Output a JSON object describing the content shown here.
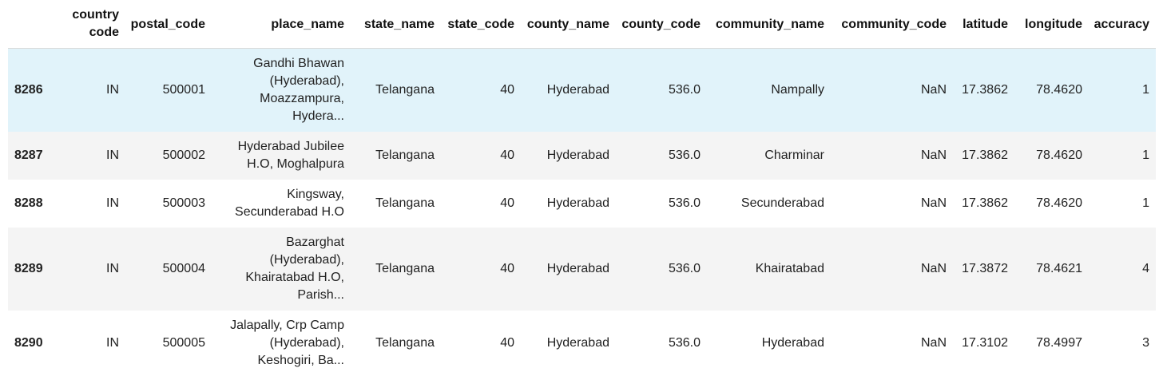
{
  "table": {
    "headers": {
      "index": "",
      "country_code": "country code",
      "postal_code": "postal_code",
      "place_name": "place_name",
      "state_name": "state_name",
      "state_code": "state_code",
      "county_name": "county_name",
      "county_code": "county_code",
      "community_name": "community_name",
      "community_code": "community_code",
      "latitude": "latitude",
      "longitude": "longitude",
      "accuracy": "accuracy"
    },
    "rows": [
      {
        "index": "8286",
        "country_code": "IN",
        "postal_code": "500001",
        "place_name": "Gandhi Bhawan (Hyderabad), Moazzampura, Hydera...",
        "state_name": "Telangana",
        "state_code": "40",
        "county_name": "Hyderabad",
        "county_code": "536.0",
        "community_name": "Nampally",
        "community_code": "NaN",
        "latitude": "17.3862",
        "longitude": "78.4620",
        "accuracy": "1"
      },
      {
        "index": "8287",
        "country_code": "IN",
        "postal_code": "500002",
        "place_name": "Hyderabad Jubilee H.O, Moghalpura",
        "state_name": "Telangana",
        "state_code": "40",
        "county_name": "Hyderabad",
        "county_code": "536.0",
        "community_name": "Charminar",
        "community_code": "NaN",
        "latitude": "17.3862",
        "longitude": "78.4620",
        "accuracy": "1"
      },
      {
        "index": "8288",
        "country_code": "IN",
        "postal_code": "500003",
        "place_name": "Kingsway, Secunderabad H.O",
        "state_name": "Telangana",
        "state_code": "40",
        "county_name": "Hyderabad",
        "county_code": "536.0",
        "community_name": "Secunderabad",
        "community_code": "NaN",
        "latitude": "17.3862",
        "longitude": "78.4620",
        "accuracy": "1"
      },
      {
        "index": "8289",
        "country_code": "IN",
        "postal_code": "500004",
        "place_name": "Bazarghat (Hyderabad), Khairatabad H.O, Parish...",
        "state_name": "Telangana",
        "state_code": "40",
        "county_name": "Hyderabad",
        "county_code": "536.0",
        "community_name": "Khairatabad",
        "community_code": "NaN",
        "latitude": "17.3872",
        "longitude": "78.4621",
        "accuracy": "4"
      },
      {
        "index": "8290",
        "country_code": "IN",
        "postal_code": "500005",
        "place_name": "Jalapally, Crp Camp (Hyderabad), Keshogiri, Ba...",
        "state_name": "Telangana",
        "state_code": "40",
        "county_name": "Hyderabad",
        "county_code": "536.0",
        "community_name": "Hyderabad",
        "community_code": "NaN",
        "latitude": "17.3102",
        "longitude": "78.4997",
        "accuracy": "3"
      }
    ]
  }
}
